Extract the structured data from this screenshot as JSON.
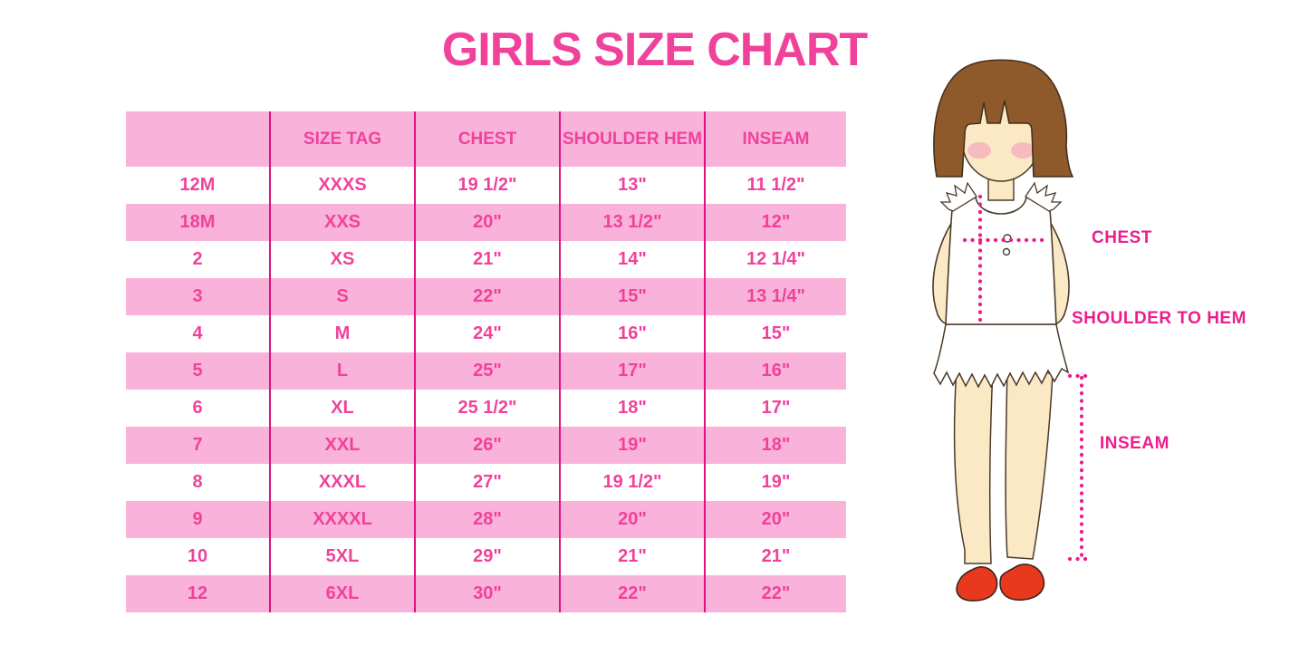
{
  "title": "GIRLS SIZE CHART",
  "chart_data": {
    "type": "table",
    "title": "GIRLS SIZE CHART",
    "columns": [
      "",
      "SIZE TAG",
      "CHEST",
      "SHOULDER HEM",
      "INSEAM"
    ],
    "rows": [
      [
        "12M",
        "XXXS",
        "19 1/2\"",
        "13\"",
        "11 1/2\""
      ],
      [
        "18M",
        "XXS",
        "20\"",
        "13 1/2\"",
        "12\""
      ],
      [
        "2",
        "XS",
        "21\"",
        "14\"",
        "12 1/4\""
      ],
      [
        "3",
        "S",
        "22\"",
        "15\"",
        "13 1/4\""
      ],
      [
        "4",
        "M",
        "24\"",
        "16\"",
        "15\""
      ],
      [
        "5",
        "L",
        "25\"",
        "17\"",
        "16\""
      ],
      [
        "6",
        "XL",
        "25 1/2\"",
        "18\"",
        "17\""
      ],
      [
        "7",
        "XXL",
        "26\"",
        "19\"",
        "18\""
      ],
      [
        "8",
        "XXXL",
        "27\"",
        "19 1/2\"",
        "19\""
      ],
      [
        "9",
        "XXXXL",
        "28\"",
        "20\"",
        "20\""
      ],
      [
        "10",
        "5XL",
        "29\"",
        "21\"",
        "21\""
      ],
      [
        "12",
        "6XL",
        "30\"",
        "22\"",
        "22\""
      ]
    ],
    "row_striping": "white rows alternate with pink rows; header row pink",
    "legend_position": "none",
    "grid": "vertical pink column dividers only"
  },
  "figure": {
    "labels": {
      "chest": "CHEST",
      "shoulder_to_hem": "SHOULDER TO HEM",
      "inseam": "INSEAM"
    }
  },
  "colors": {
    "accent_pink": "#F0429B",
    "row_pink": "#F9B2D9",
    "divider_pink": "#E0117F",
    "label_pink": "#EC1E8C",
    "hair_brown": "#8E5A2B",
    "skin": "#FBE9C6",
    "shoe_red": "#E8391D"
  }
}
